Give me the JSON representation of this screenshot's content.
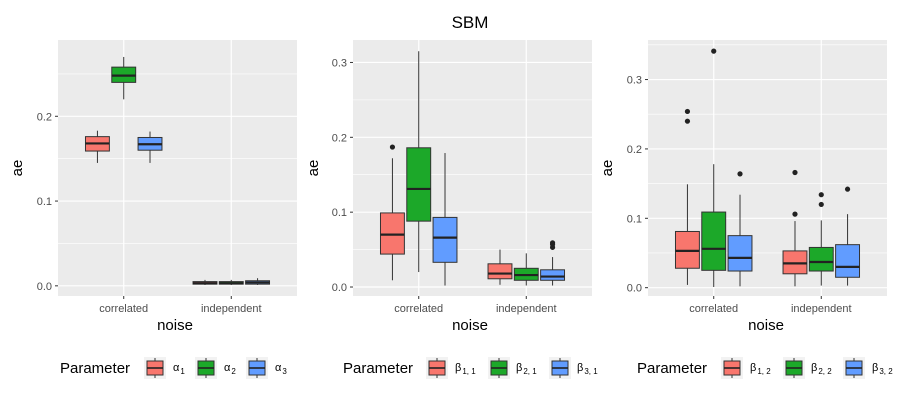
{
  "title": "SBM",
  "colors": {
    "red": "#F8766D",
    "green": "#1CA829",
    "blue": "#619CFF",
    "panel": "#EBEBEB",
    "grid": "#FFFFFF"
  },
  "chart_data": [
    {
      "type": "boxplot",
      "xlabel": "noise",
      "ylabel": "ae",
      "categories": [
        "correlated",
        "independent"
      ],
      "ylim": [
        -0.012,
        0.29
      ],
      "yticks": [
        0.0,
        0.1,
        0.2
      ],
      "ytick_labels": [
        "0.0",
        "0.1",
        "0.2"
      ],
      "legend": {
        "title": "Parameter",
        "items": [
          {
            "label": "α",
            "sub": "1",
            "color": "#F8766D"
          },
          {
            "label": "α",
            "sub": "2",
            "color": "#1CA829"
          },
          {
            "label": "α",
            "sub": "3",
            "color": "#619CFF"
          }
        ]
      },
      "series": [
        {
          "name": "α1",
          "color": "#F8766D",
          "boxes": [
            {
              "category": "correlated",
              "min": 0.145,
              "q1": 0.159,
              "median": 0.168,
              "q3": 0.176,
              "max": 0.183,
              "outliers": []
            },
            {
              "category": "independent",
              "min": 0.001,
              "q1": 0.002,
              "median": 0.003,
              "q3": 0.005,
              "max": 0.007,
              "outliers": []
            }
          ]
        },
        {
          "name": "α2",
          "color": "#1CA829",
          "boxes": [
            {
              "category": "correlated",
              "min": 0.22,
              "q1": 0.24,
              "median": 0.248,
              "q3": 0.258,
              "max": 0.27,
              "outliers": []
            },
            {
              "category": "independent",
              "min": 0.001,
              "q1": 0.002,
              "median": 0.003,
              "q3": 0.005,
              "max": 0.007,
              "outliers": []
            }
          ]
        },
        {
          "name": "α3",
          "color": "#619CFF",
          "boxes": [
            {
              "category": "correlated",
              "min": 0.145,
              "q1": 0.16,
              "median": 0.167,
              "q3": 0.175,
              "max": 0.182,
              "outliers": []
            },
            {
              "category": "independent",
              "min": 0.001,
              "q1": 0.002,
              "median": 0.004,
              "q3": 0.006,
              "max": 0.009,
              "outliers": []
            }
          ]
        }
      ]
    },
    {
      "type": "boxplot",
      "xlabel": "noise",
      "ylabel": "ae",
      "categories": [
        "correlated",
        "independent"
      ],
      "ylim": [
        -0.012,
        0.33
      ],
      "yticks": [
        0.0,
        0.1,
        0.2,
        0.3
      ],
      "ytick_labels": [
        "0.0",
        "0.1",
        "0.2",
        "0.3"
      ],
      "legend": {
        "title": "Parameter",
        "items": [
          {
            "label": "β",
            "sub": "1, 1",
            "color": "#F8766D"
          },
          {
            "label": "β",
            "sub": "2, 1",
            "color": "#1CA829"
          },
          {
            "label": "β",
            "sub": "3, 1",
            "color": "#619CFF"
          }
        ]
      },
      "series": [
        {
          "name": "β1,1",
          "color": "#F8766D",
          "boxes": [
            {
              "category": "correlated",
              "min": 0.009,
              "q1": 0.044,
              "median": 0.07,
              "q3": 0.099,
              "max": 0.172,
              "outliers": [
                0.187
              ]
            },
            {
              "category": "independent",
              "min": 0.003,
              "q1": 0.011,
              "median": 0.018,
              "q3": 0.031,
              "max": 0.05,
              "outliers": []
            }
          ]
        },
        {
          "name": "β2,1",
          "color": "#1CA829",
          "boxes": [
            {
              "category": "correlated",
              "min": 0.02,
              "q1": 0.088,
              "median": 0.131,
              "q3": 0.186,
              "max": 0.315,
              "outliers": []
            },
            {
              "category": "independent",
              "min": 0.002,
              "q1": 0.009,
              "median": 0.016,
              "q3": 0.025,
              "max": 0.045,
              "outliers": []
            }
          ]
        },
        {
          "name": "β3,1",
          "color": "#619CFF",
          "boxes": [
            {
              "category": "correlated",
              "min": 0.002,
              "q1": 0.033,
              "median": 0.066,
              "q3": 0.093,
              "max": 0.179,
              "outliers": []
            },
            {
              "category": "independent",
              "min": 0.002,
              "q1": 0.009,
              "median": 0.014,
              "q3": 0.023,
              "max": 0.04,
              "outliers": [
                0.053,
                0.057,
                0.059
              ]
            }
          ]
        }
      ]
    },
    {
      "type": "boxplot",
      "xlabel": "noise",
      "ylabel": "ae",
      "categories": [
        "correlated",
        "independent"
      ],
      "ylim": [
        -0.012,
        0.357
      ],
      "yticks": [
        0.0,
        0.1,
        0.2,
        0.3
      ],
      "ytick_labels": [
        "0.0",
        "0.1",
        "0.2",
        "0.3"
      ],
      "legend": {
        "title": "Parameter",
        "items": [
          {
            "label": "β",
            "sub": "1, 2",
            "color": "#F8766D"
          },
          {
            "label": "β",
            "sub": "2, 2",
            "color": "#1CA829"
          },
          {
            "label": "β",
            "sub": "3, 2",
            "color": "#619CFF"
          }
        ]
      },
      "series": [
        {
          "name": "β1,2",
          "color": "#F8766D",
          "boxes": [
            {
              "category": "correlated",
              "min": 0.004,
              "q1": 0.028,
              "median": 0.053,
              "q3": 0.081,
              "max": 0.149,
              "outliers": [
                0.24,
                0.254
              ]
            },
            {
              "category": "independent",
              "min": 0.002,
              "q1": 0.02,
              "median": 0.035,
              "q3": 0.053,
              "max": 0.096,
              "outliers": [
                0.106,
                0.166
              ]
            }
          ]
        },
        {
          "name": "β2,2",
          "color": "#1CA829",
          "boxes": [
            {
              "category": "correlated",
              "min": 0.001,
              "q1": 0.025,
              "median": 0.056,
              "q3": 0.109,
              "max": 0.178,
              "outliers": [
                0.341
              ]
            },
            {
              "category": "independent",
              "min": 0.003,
              "q1": 0.024,
              "median": 0.037,
              "q3": 0.058,
              "max": 0.097,
              "outliers": [
                0.12,
                0.134
              ]
            }
          ]
        },
        {
          "name": "β3,2",
          "color": "#619CFF",
          "boxes": [
            {
              "category": "correlated",
              "min": 0.002,
              "q1": 0.024,
              "median": 0.043,
              "q3": 0.075,
              "max": 0.134,
              "outliers": [
                0.164
              ]
            },
            {
              "category": "independent",
              "min": 0.003,
              "q1": 0.015,
              "median": 0.03,
              "q3": 0.062,
              "max": 0.106,
              "outliers": [
                0.142
              ]
            }
          ]
        }
      ]
    }
  ]
}
